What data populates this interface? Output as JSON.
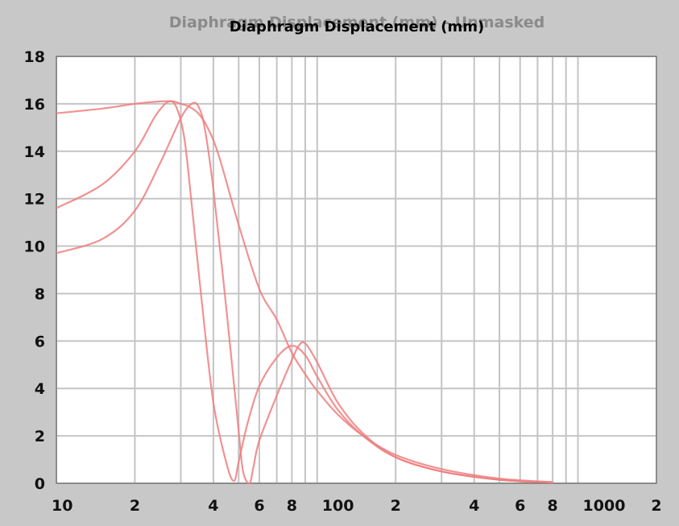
{
  "window": {
    "ghost_title": "Diaphragm Displacement (mm) - Unmasked",
    "title": "Diaphragm Displacement (mm)"
  },
  "colors": {
    "background": "#c8c8c8",
    "plot_area": "#ffffff",
    "grid": "#c4c4c4",
    "curve": "#ee7f7f"
  },
  "chart_data": {
    "type": "line",
    "title": "Diaphragm Displacement (mm)",
    "xlabel": "",
    "ylabel": "",
    "xscale": "log",
    "xlim": [
      10,
      2000
    ],
    "ylim": [
      0,
      18
    ],
    "grid": true,
    "legend": "none",
    "y_ticks": [
      0,
      2,
      4,
      6,
      8,
      10,
      12,
      14,
      16,
      18
    ],
    "x_ticks": [
      {
        "value": 10,
        "label": "10"
      },
      {
        "value": 20,
        "label": "2"
      },
      {
        "value": 40,
        "label": "4"
      },
      {
        "value": 60,
        "label": "6"
      },
      {
        "value": 80,
        "label": "8"
      },
      {
        "value": 100,
        "label": "100"
      },
      {
        "value": 200,
        "label": "2"
      },
      {
        "value": 400,
        "label": "4"
      },
      {
        "value": 600,
        "label": "6"
      },
      {
        "value": 800,
        "label": "8"
      },
      {
        "value": 1000,
        "label": "1000"
      },
      {
        "value": 2000,
        "label": "2"
      }
    ],
    "series": [
      {
        "color": "#ee7f7f",
        "x": [
          10,
          15,
          20,
          25,
          28,
          30,
          32,
          35,
          38,
          42,
          50,
          60,
          70,
          80,
          90,
          100,
          120,
          150,
          200,
          300,
          500,
          800
        ],
        "y": [
          15.6,
          15.8,
          16.0,
          16.1,
          16.1,
          16.0,
          15.9,
          15.6,
          15.0,
          13.8,
          10.9,
          8.2,
          6.9,
          5.5,
          4.6,
          3.9,
          2.9,
          2.0,
          1.2,
          0.6,
          0.2,
          0.05
        ]
      },
      {
        "color": "#ee7f7f",
        "x": [
          10,
          15,
          20,
          24,
          27,
          29,
          31,
          33,
          36,
          40,
          45,
          48,
          50,
          54,
          60,
          70,
          80,
          90,
          100,
          120,
          150,
          200,
          300,
          500,
          800
        ],
        "y": [
          11.6,
          12.6,
          14.0,
          15.5,
          16.1,
          15.8,
          14.5,
          11.8,
          7.8,
          3.4,
          0.8,
          0.1,
          0.9,
          2.5,
          4.1,
          5.3,
          5.8,
          5.4,
          4.5,
          3.1,
          2.0,
          1.1,
          0.5,
          0.15,
          0.03
        ]
      },
      {
        "color": "#ee7f7f",
        "x": [
          10,
          15,
          20,
          25,
          30,
          33,
          35,
          37,
          40,
          45,
          50,
          52,
          55,
          57,
          60,
          70,
          80,
          85,
          90,
          100,
          120,
          150,
          200,
          300,
          500,
          800
        ],
        "y": [
          9.7,
          10.3,
          11.5,
          13.5,
          15.4,
          16.0,
          15.9,
          15.0,
          12.4,
          7.2,
          2.2,
          0.5,
          0.0,
          0.7,
          1.8,
          3.7,
          5.2,
          5.8,
          5.9,
          5.1,
          3.4,
          2.1,
          1.1,
          0.5,
          0.15,
          0.03
        ]
      }
    ]
  }
}
